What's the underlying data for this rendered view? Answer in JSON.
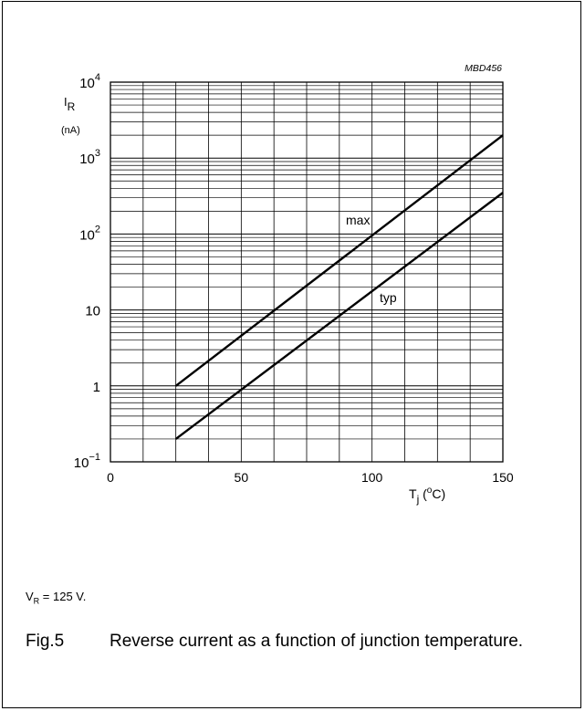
{
  "chart_data": {
    "type": "line",
    "code": "MBD456",
    "x_axis": {
      "symbol": "T",
      "subscript": "j",
      "unit_open": " (",
      "unit_sup": "o",
      "unit_close": "C)",
      "ticks": [
        0,
        50,
        100,
        150
      ],
      "lim": [
        0,
        150
      ]
    },
    "y_axis": {
      "symbol": "I",
      "subscript": "R",
      "unit": "(nA)",
      "scale": "log",
      "lim": [
        0.1,
        10000
      ],
      "ticks": [
        {
          "value": 0.1,
          "base": "10",
          "exp": "−1"
        },
        {
          "value": 1,
          "base": "1",
          "exp": ""
        },
        {
          "value": 10,
          "base": "10",
          "exp": ""
        },
        {
          "value": 100,
          "base": "10",
          "exp": "2"
        },
        {
          "value": 1000,
          "base": "10",
          "exp": "3"
        },
        {
          "value": 10000,
          "base": "10",
          "exp": "4"
        }
      ]
    },
    "grid": true,
    "series": [
      {
        "name": "max",
        "x": [
          25,
          150
        ],
        "y": [
          1,
          2000
        ]
      },
      {
        "name": "typ",
        "x": [
          25,
          150
        ],
        "y": [
          0.2,
          350
        ]
      }
    ]
  },
  "conditions": {
    "symbol": "V",
    "subscript": "R",
    "rest": " = 125 V."
  },
  "caption": {
    "number": "Fig.5",
    "text": "Reverse current as a function of junction temperature."
  }
}
